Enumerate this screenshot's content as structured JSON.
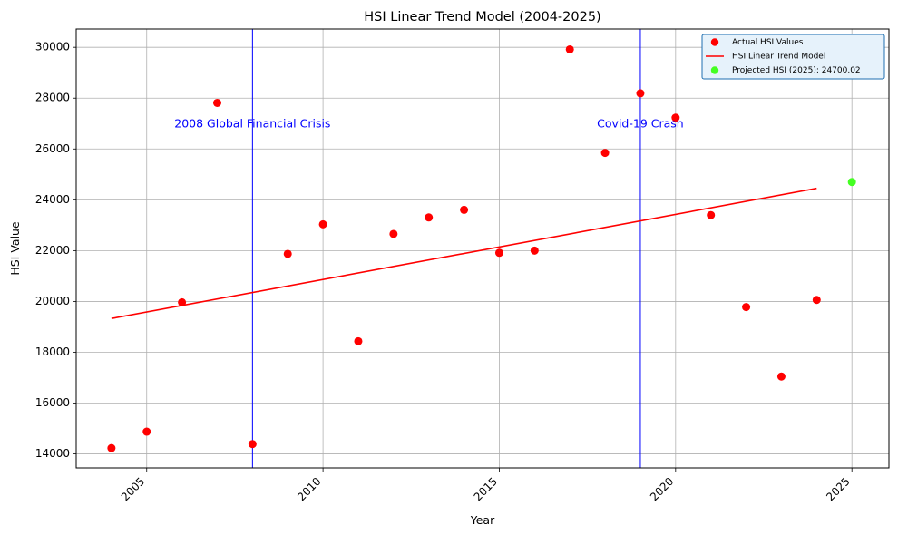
{
  "chart_data": {
    "type": "scatter",
    "title": "HSI Linear Trend Model (2004-2025)",
    "xlabel": "Year",
    "ylabel": "HSI Value",
    "xlim": [
      2003.0,
      2026.05
    ],
    "ylim": [
      13450,
      30720
    ],
    "x_ticks": [
      2005,
      2010,
      2015,
      2020,
      2025
    ],
    "x_tick_labels": [
      "2005",
      "2010",
      "2015",
      "2020",
      "2025"
    ],
    "y_ticks": [
      14000,
      16000,
      18000,
      20000,
      22000,
      24000,
      26000,
      28000,
      30000
    ],
    "y_tick_labels": [
      "14000",
      "16000",
      "18000",
      "20000",
      "22000",
      "24000",
      "26000",
      "28000",
      "30000"
    ],
    "grid": true,
    "legend_position": "top-right",
    "series": [
      {
        "name": "Actual HSI Values",
        "kind": "scatter",
        "color": "#ff0000",
        "x": [
          2004,
          2005,
          2006,
          2007,
          2008,
          2009,
          2010,
          2011,
          2012,
          2013,
          2014,
          2015,
          2016,
          2017,
          2018,
          2019,
          2020,
          2021,
          2022,
          2023,
          2024
        ],
        "y": [
          14230,
          14876,
          19965,
          27813,
          14387,
          21873,
          23035,
          18434,
          22657,
          23306,
          23605,
          21914,
          22001,
          29919,
          25846,
          28190,
          27231,
          23398,
          19781,
          17047,
          20060
        ]
      },
      {
        "name": "HSI Linear Trend Model",
        "kind": "line",
        "color": "#ff0000",
        "x": [
          2004,
          2024
        ],
        "y": [
          19330,
          24450
        ]
      },
      {
        "name": "Projected HSI (2025): 24700.02",
        "kind": "scatter",
        "color": "#44ff22",
        "x": [
          2025
        ],
        "y": [
          24700.02
        ]
      }
    ],
    "vlines": [
      {
        "x": 2008,
        "label": "2008 Global Financial Crisis",
        "label_y": 26980,
        "color": "#0000ff"
      },
      {
        "x": 2019,
        "label": "Covid-19 Crash",
        "label_y": 26980,
        "color": "#0000ff"
      }
    ]
  }
}
